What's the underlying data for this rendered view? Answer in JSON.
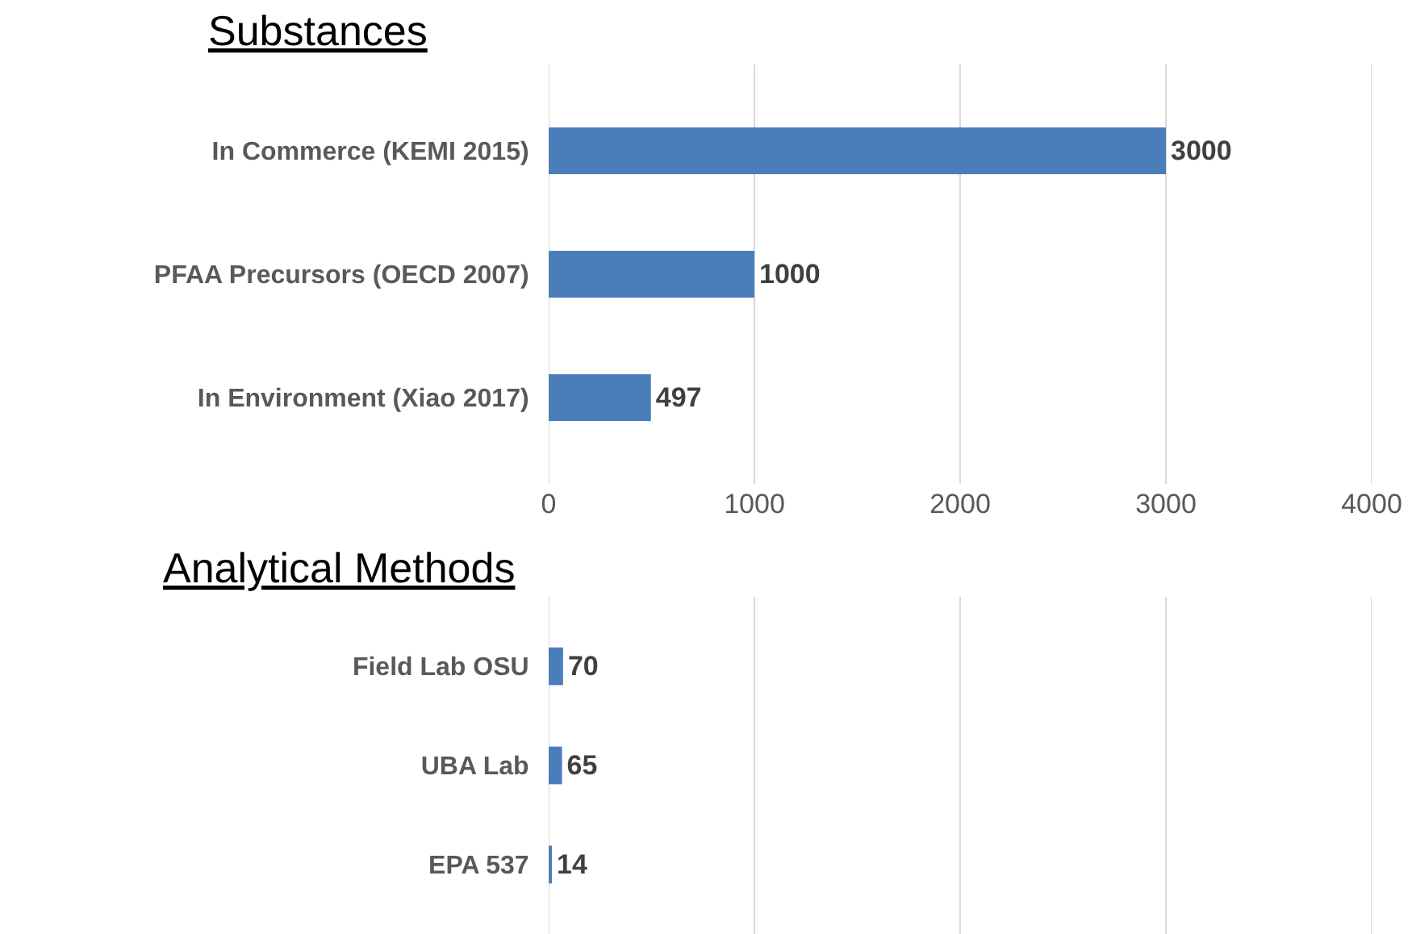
{
  "chart_data": [
    {
      "type": "bar",
      "title": "Substances",
      "orientation": "horizontal",
      "categories": [
        "In Commerce (KEMI 2015)",
        "PFAA Precursors (OECD 2007)",
        "In Environment (Xiao 2017)"
      ],
      "values": [
        3000,
        1000,
        497
      ],
      "color": "#4a7ebb",
      "xlim": [
        0,
        4000
      ],
      "xticks": [
        0,
        1000,
        2000,
        3000,
        4000
      ],
      "grid": "x",
      "data_labels": true
    },
    {
      "type": "bar",
      "title": "Analytical Methods",
      "orientation": "horizontal",
      "categories": [
        "Field Lab OSU",
        "UBA Lab",
        "EPA 537"
      ],
      "values": [
        70,
        65,
        14
      ],
      "color": "#4a7ebb",
      "xlim": [
        0,
        4000
      ],
      "xticks": [
        0,
        1000,
        2000,
        3000,
        4000
      ],
      "grid": "x",
      "data_labels": true,
      "tick_labels": "y"
    }
  ]
}
